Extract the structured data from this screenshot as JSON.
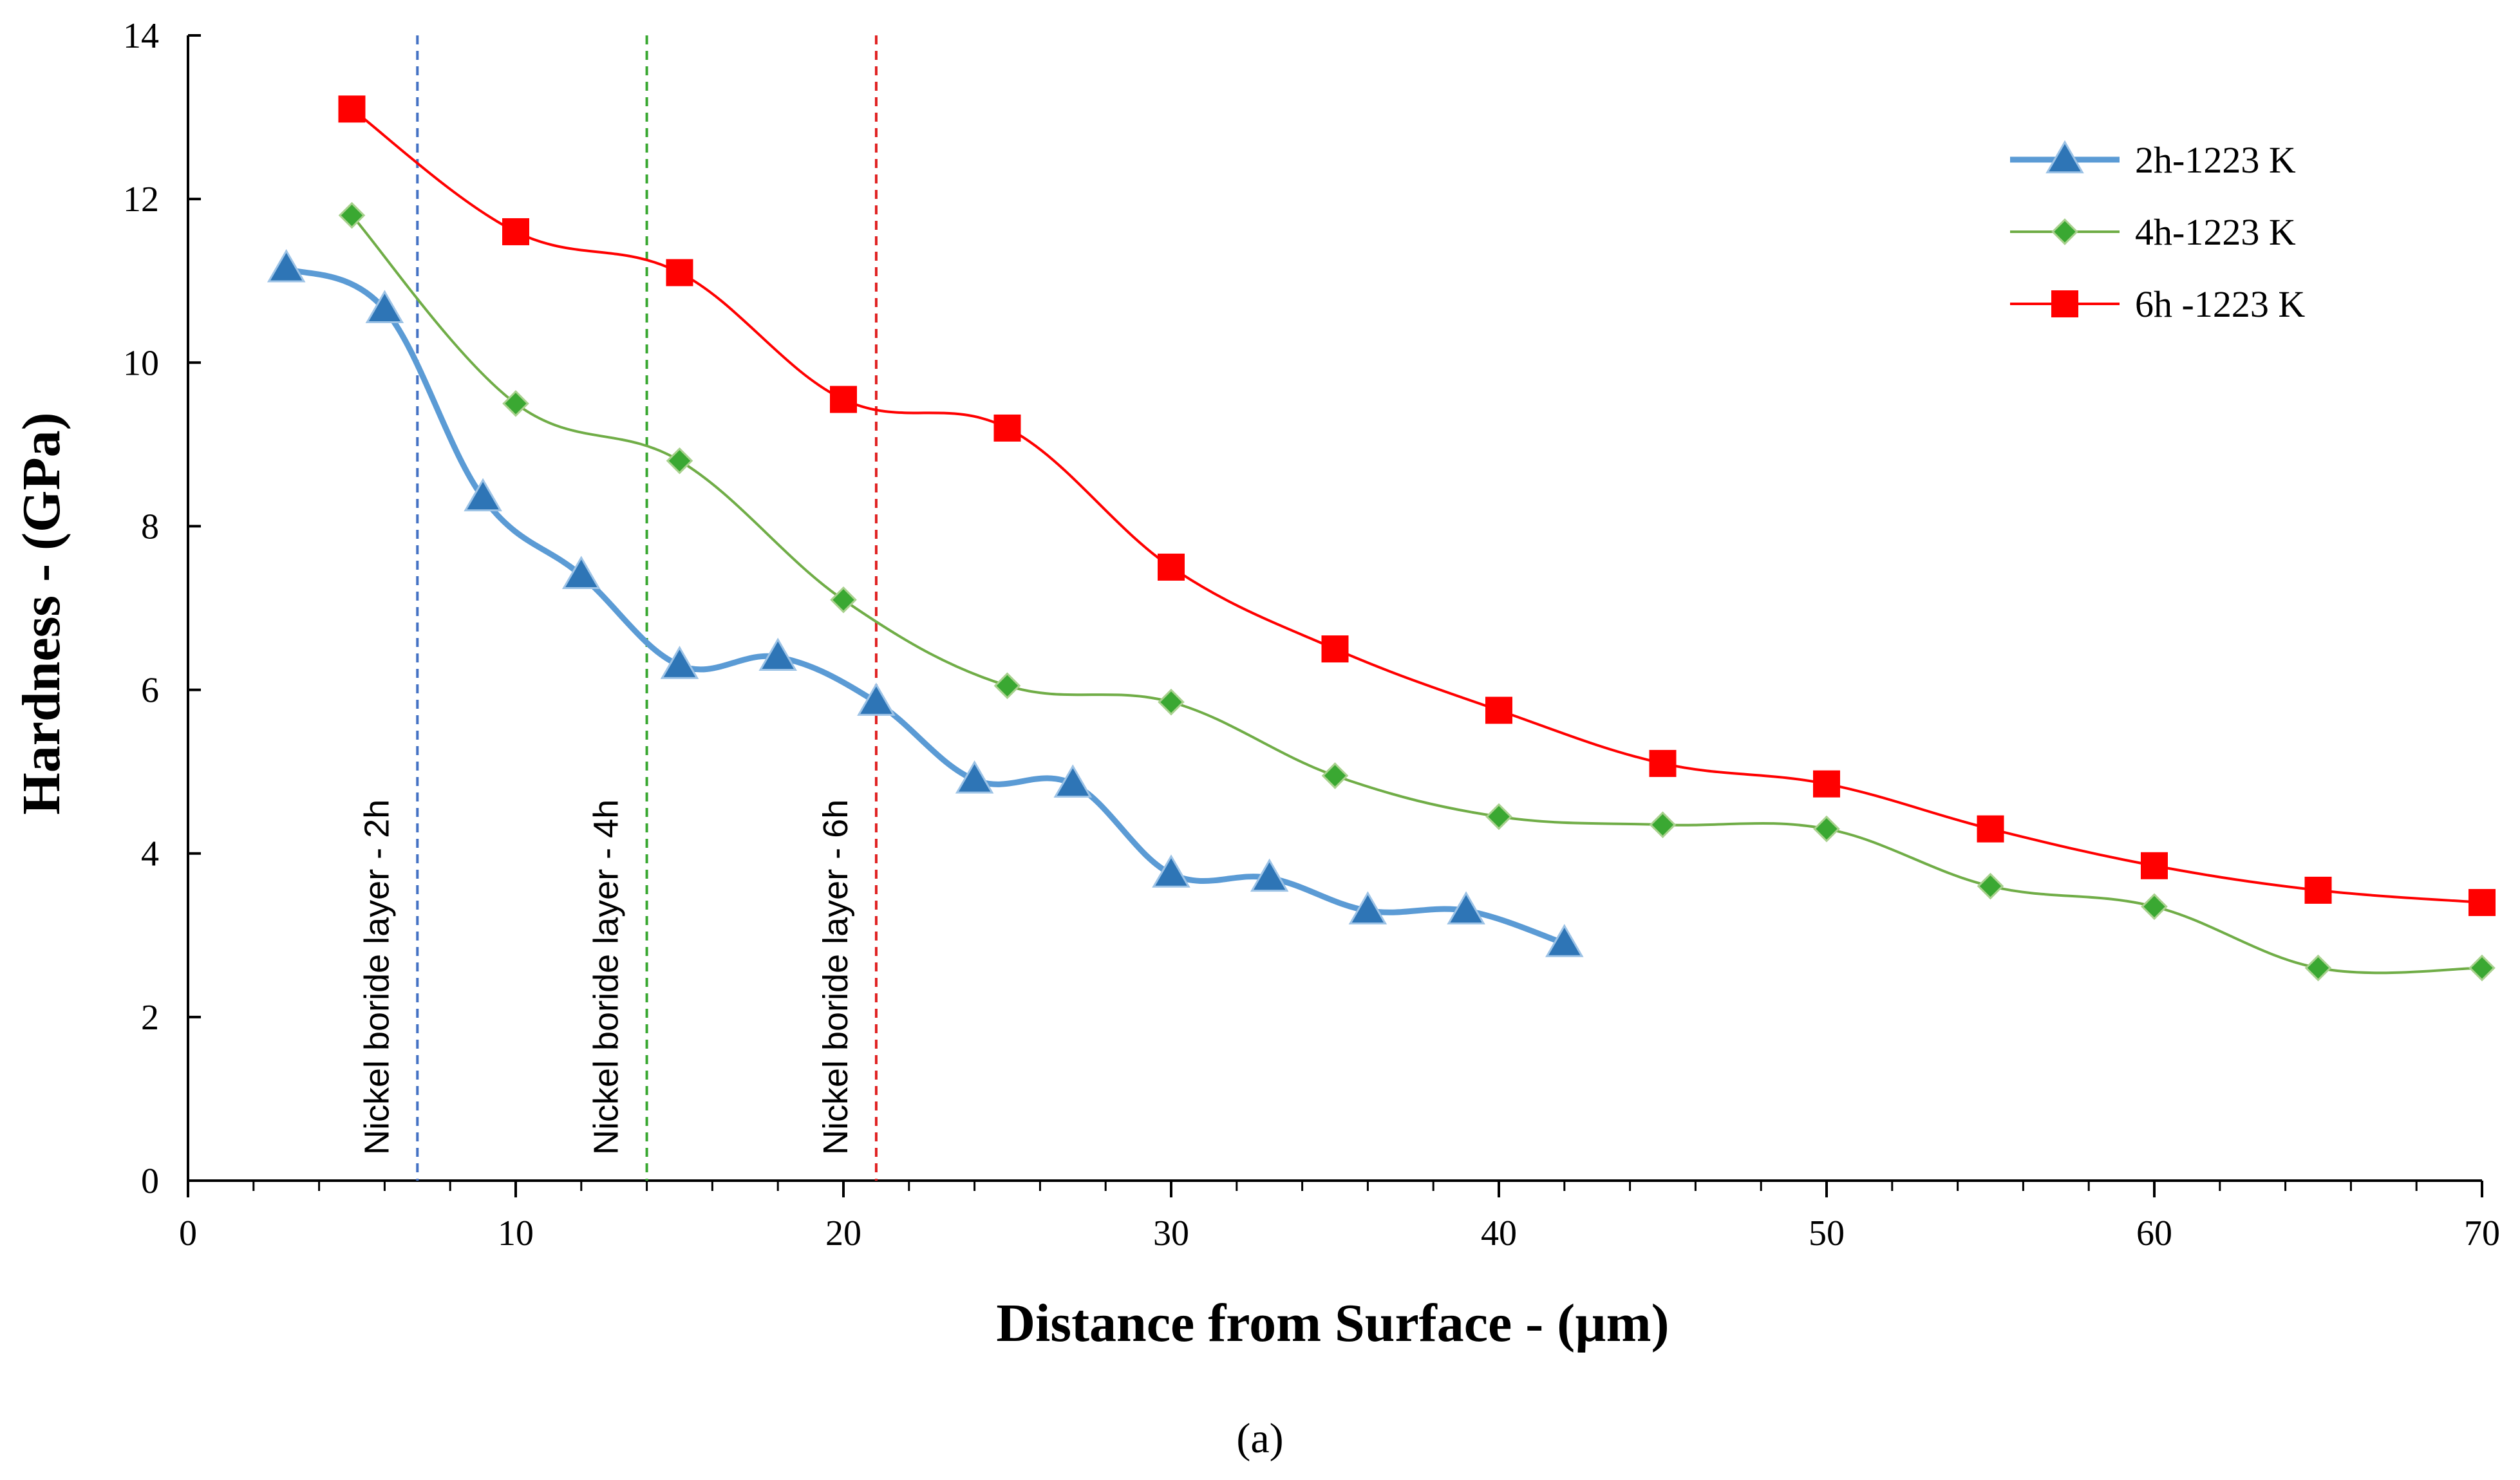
{
  "chart_data": {
    "type": "line",
    "title": "",
    "xlabel": "Distance from Surface - (µm)",
    "ylabel": "Hardness - (GPa)",
    "xlim": [
      0,
      70
    ],
    "ylim": [
      0,
      14
    ],
    "xticks": [
      0,
      10,
      20,
      30,
      40,
      50,
      60,
      70
    ],
    "yticks": [
      0,
      2,
      4,
      6,
      8,
      10,
      12,
      14
    ],
    "grid": false,
    "legend_position": "top-right",
    "series": [
      {
        "name": "2h-1223 K",
        "color": "#5b9bd5",
        "marker": "triangle",
        "marker_color": "#2e75b6",
        "x": [
          3,
          6,
          9,
          12,
          15,
          18,
          21,
          24,
          27,
          30,
          33,
          36,
          39,
          42
        ],
        "values": [
          11.15,
          10.65,
          8.35,
          7.4,
          6.3,
          6.4,
          5.85,
          4.9,
          4.85,
          3.75,
          3.7,
          3.3,
          3.3,
          2.9
        ]
      },
      {
        "name": "4h-1223 K",
        "color": "#70ad47",
        "marker": "diamond",
        "marker_color": "#3aa832",
        "x": [
          5,
          10,
          15,
          20,
          25,
          30,
          35,
          40,
          45,
          50,
          55,
          60,
          65,
          70
        ],
        "values": [
          11.8,
          9.5,
          8.8,
          7.1,
          6.05,
          5.85,
          4.95,
          4.45,
          4.35,
          4.3,
          3.6,
          3.35,
          2.6,
          2.6
        ]
      },
      {
        "name": "6h -1223 K",
        "color": "#ff0000",
        "marker": "square",
        "marker_color": "#ff0000",
        "x": [
          5,
          10,
          15,
          20,
          25,
          30,
          35,
          40,
          45,
          50,
          55,
          60,
          65,
          70
        ],
        "values": [
          13.1,
          11.6,
          11.1,
          9.55,
          9.2,
          7.5,
          6.5,
          5.75,
          5.1,
          4.85,
          4.3,
          3.85,
          3.55,
          3.4
        ]
      }
    ],
    "reference_lines": [
      {
        "x": 7,
        "label": "Nickel boride layer - 2h",
        "color": "#4472c4"
      },
      {
        "x": 14,
        "label": "Nickel boride layer - 4h",
        "color": "#3aa832"
      },
      {
        "x": 21,
        "label": "Nickel boride layer - 6h",
        "color": "#e02020"
      }
    ],
    "caption": "(a)"
  }
}
